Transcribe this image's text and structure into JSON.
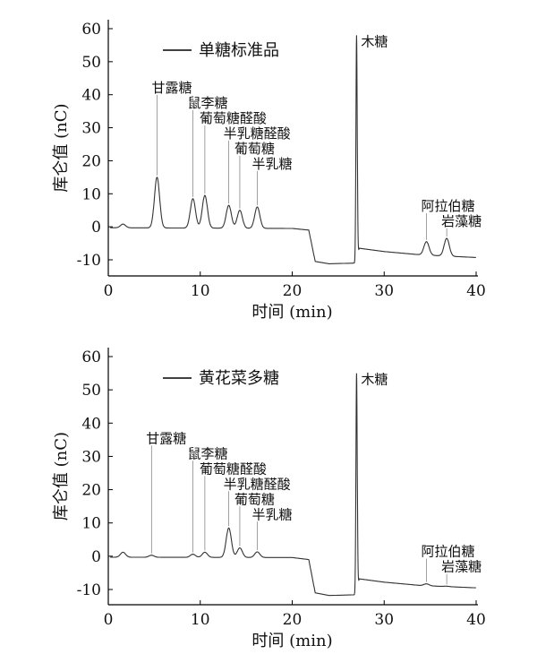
{
  "chart_data": [
    {
      "type": "line",
      "legend": "单糖标准品",
      "xlabel": "时间 (min)",
      "ylabel": "库仑值 (nC)",
      "xlim": [
        0,
        40
      ],
      "ylim": [
        -15,
        62
      ],
      "xticks": [
        0,
        10,
        20,
        30,
        40
      ],
      "yticks": [
        -10,
        0,
        10,
        20,
        30,
        40,
        50,
        60
      ],
      "baseline": [
        [
          0,
          -0.3
        ],
        [
          1.5,
          -0.3
        ],
        [
          20,
          -0.5
        ],
        [
          21.8,
          -1
        ],
        [
          22.5,
          -10.5
        ],
        [
          24,
          -11.2
        ],
        [
          26.8,
          -11
        ],
        [
          27.3,
          -6.5
        ],
        [
          30,
          -7.5
        ],
        [
          34,
          -8.5
        ],
        [
          40,
          -9.3
        ]
      ],
      "peaks": [
        {
          "name": "",
          "rt": 1.6,
          "value": 0.8
        },
        {
          "name": "甘露糖",
          "rt": 5.3,
          "value": 15
        },
        {
          "name": "鼠李糖",
          "rt": 9.2,
          "value": 8.5
        },
        {
          "name": "葡萄糖醛酸",
          "rt": 10.5,
          "value": 9.5
        },
        {
          "name": "半乳糖醛酸",
          "rt": 13.1,
          "value": 6.5
        },
        {
          "name": "葡萄糖",
          "rt": 14.3,
          "value": 5
        },
        {
          "name": "半乳糖",
          "rt": 16.2,
          "value": 6
        },
        {
          "name": "木糖",
          "rt": 27.0,
          "value": 58
        },
        {
          "name": "阿拉伯糖",
          "rt": 34.6,
          "value": -4.5
        },
        {
          "name": "岩藻糖",
          "rt": 36.8,
          "value": -3.5
        }
      ]
    },
    {
      "type": "line",
      "legend": "黄花菜多糖",
      "xlabel": "时间 (min)",
      "ylabel": "库仑值 (nC)",
      "xlim": [
        0,
        40
      ],
      "ylim": [
        -15,
        62
      ],
      "xticks": [
        0,
        10,
        20,
        30,
        40
      ],
      "yticks": [
        -10,
        0,
        10,
        20,
        30,
        40,
        50,
        60
      ],
      "baseline": [
        [
          0,
          -0.3
        ],
        [
          1.5,
          -0.3
        ],
        [
          20,
          -0.4
        ],
        [
          21.8,
          -1
        ],
        [
          22.5,
          -11
        ],
        [
          24,
          -11.8
        ],
        [
          26.8,
          -11.6
        ],
        [
          27.3,
          -6.8
        ],
        [
          30,
          -7.8
        ],
        [
          34,
          -8.8
        ],
        [
          40,
          -9.5
        ]
      ],
      "peaks": [
        {
          "name": "",
          "rt": 1.6,
          "value": 1.2
        },
        {
          "name": "甘露糖",
          "rt": 4.7,
          "value": 0.3
        },
        {
          "name": "鼠李糖",
          "rt": 9.2,
          "value": 0.6
        },
        {
          "name": "葡萄糖醛酸",
          "rt": 10.5,
          "value": 1.2
        },
        {
          "name": "半乳糖醛酸",
          "rt": 13.1,
          "value": 8.5
        },
        {
          "name": "葡萄糖",
          "rt": 14.3,
          "value": 2.5
        },
        {
          "name": "半乳糖",
          "rt": 16.2,
          "value": 1.3
        },
        {
          "name": "木糖",
          "rt": 27.0,
          "value": 55
        },
        {
          "name": "阿拉伯糖",
          "rt": 34.6,
          "value": -8.3
        },
        {
          "name": "岩藻糖",
          "rt": 36.8,
          "value": -9.0
        }
      ]
    }
  ]
}
